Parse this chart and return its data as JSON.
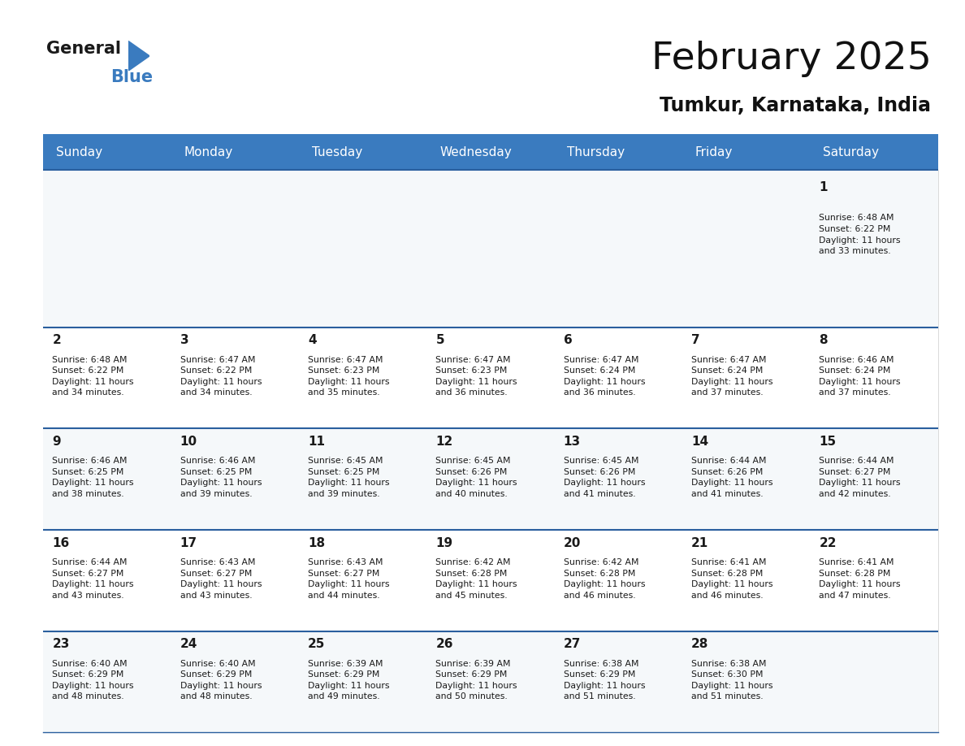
{
  "title": "February 2025",
  "subtitle": "Tumkur, Karnataka, India",
  "header_bg": "#3a7bbf",
  "header_text": "#ffffff",
  "border_color": "#2a5f9e",
  "cell_bg_odd": "#f5f8fa",
  "cell_bg_even": "#ffffff",
  "days_of_week": [
    "Sunday",
    "Monday",
    "Tuesday",
    "Wednesday",
    "Thursday",
    "Friday",
    "Saturday"
  ],
  "calendar_data": [
    [
      null,
      null,
      null,
      null,
      null,
      null,
      {
        "day": 1,
        "sunrise": "6:48 AM",
        "sunset": "6:22 PM",
        "daylight_hours": 11,
        "daylight_minutes": 33
      }
    ],
    [
      {
        "day": 2,
        "sunrise": "6:48 AM",
        "sunset": "6:22 PM",
        "daylight_hours": 11,
        "daylight_minutes": 34
      },
      {
        "day": 3,
        "sunrise": "6:47 AM",
        "sunset": "6:22 PM",
        "daylight_hours": 11,
        "daylight_minutes": 34
      },
      {
        "day": 4,
        "sunrise": "6:47 AM",
        "sunset": "6:23 PM",
        "daylight_hours": 11,
        "daylight_minutes": 35
      },
      {
        "day": 5,
        "sunrise": "6:47 AM",
        "sunset": "6:23 PM",
        "daylight_hours": 11,
        "daylight_minutes": 36
      },
      {
        "day": 6,
        "sunrise": "6:47 AM",
        "sunset": "6:24 PM",
        "daylight_hours": 11,
        "daylight_minutes": 36
      },
      {
        "day": 7,
        "sunrise": "6:47 AM",
        "sunset": "6:24 PM",
        "daylight_hours": 11,
        "daylight_minutes": 37
      },
      {
        "day": 8,
        "sunrise": "6:46 AM",
        "sunset": "6:24 PM",
        "daylight_hours": 11,
        "daylight_minutes": 37
      }
    ],
    [
      {
        "day": 9,
        "sunrise": "6:46 AM",
        "sunset": "6:25 PM",
        "daylight_hours": 11,
        "daylight_minutes": 38
      },
      {
        "day": 10,
        "sunrise": "6:46 AM",
        "sunset": "6:25 PM",
        "daylight_hours": 11,
        "daylight_minutes": 39
      },
      {
        "day": 11,
        "sunrise": "6:45 AM",
        "sunset": "6:25 PM",
        "daylight_hours": 11,
        "daylight_minutes": 39
      },
      {
        "day": 12,
        "sunrise": "6:45 AM",
        "sunset": "6:26 PM",
        "daylight_hours": 11,
        "daylight_minutes": 40
      },
      {
        "day": 13,
        "sunrise": "6:45 AM",
        "sunset": "6:26 PM",
        "daylight_hours": 11,
        "daylight_minutes": 41
      },
      {
        "day": 14,
        "sunrise": "6:44 AM",
        "sunset": "6:26 PM",
        "daylight_hours": 11,
        "daylight_minutes": 41
      },
      {
        "day": 15,
        "sunrise": "6:44 AM",
        "sunset": "6:27 PM",
        "daylight_hours": 11,
        "daylight_minutes": 42
      }
    ],
    [
      {
        "day": 16,
        "sunrise": "6:44 AM",
        "sunset": "6:27 PM",
        "daylight_hours": 11,
        "daylight_minutes": 43
      },
      {
        "day": 17,
        "sunrise": "6:43 AM",
        "sunset": "6:27 PM",
        "daylight_hours": 11,
        "daylight_minutes": 43
      },
      {
        "day": 18,
        "sunrise": "6:43 AM",
        "sunset": "6:27 PM",
        "daylight_hours": 11,
        "daylight_minutes": 44
      },
      {
        "day": 19,
        "sunrise": "6:42 AM",
        "sunset": "6:28 PM",
        "daylight_hours": 11,
        "daylight_minutes": 45
      },
      {
        "day": 20,
        "sunrise": "6:42 AM",
        "sunset": "6:28 PM",
        "daylight_hours": 11,
        "daylight_minutes": 46
      },
      {
        "day": 21,
        "sunrise": "6:41 AM",
        "sunset": "6:28 PM",
        "daylight_hours": 11,
        "daylight_minutes": 46
      },
      {
        "day": 22,
        "sunrise": "6:41 AM",
        "sunset": "6:28 PM",
        "daylight_hours": 11,
        "daylight_minutes": 47
      }
    ],
    [
      {
        "day": 23,
        "sunrise": "6:40 AM",
        "sunset": "6:29 PM",
        "daylight_hours": 11,
        "daylight_minutes": 48
      },
      {
        "day": 24,
        "sunrise": "6:40 AM",
        "sunset": "6:29 PM",
        "daylight_hours": 11,
        "daylight_minutes": 48
      },
      {
        "day": 25,
        "sunrise": "6:39 AM",
        "sunset": "6:29 PM",
        "daylight_hours": 11,
        "daylight_minutes": 49
      },
      {
        "day": 26,
        "sunrise": "6:39 AM",
        "sunset": "6:29 PM",
        "daylight_hours": 11,
        "daylight_minutes": 50
      },
      {
        "day": 27,
        "sunrise": "6:38 AM",
        "sunset": "6:29 PM",
        "daylight_hours": 11,
        "daylight_minutes": 51
      },
      {
        "day": 28,
        "sunrise": "6:38 AM",
        "sunset": "6:30 PM",
        "daylight_hours": 11,
        "daylight_minutes": 51
      },
      null
    ]
  ]
}
